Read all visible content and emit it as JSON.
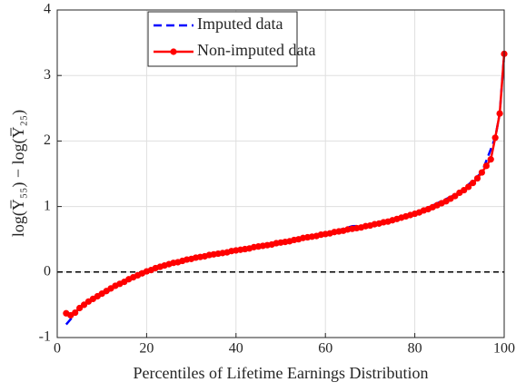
{
  "chart_data": {
    "type": "line",
    "xlabel": "Percentiles of Lifetime Earnings Distribution",
    "ylabel": "log(Y̅₅₅) − log(Y̅₂₅)",
    "x": [
      2,
      3,
      4,
      5,
      6,
      7,
      8,
      9,
      10,
      11,
      12,
      13,
      14,
      15,
      16,
      17,
      18,
      19,
      20,
      21,
      22,
      23,
      24,
      25,
      26,
      27,
      28,
      29,
      30,
      31,
      32,
      33,
      34,
      35,
      36,
      37,
      38,
      39,
      40,
      41,
      42,
      43,
      44,
      45,
      46,
      47,
      48,
      49,
      50,
      51,
      52,
      53,
      54,
      55,
      56,
      57,
      58,
      59,
      60,
      61,
      62,
      63,
      64,
      65,
      66,
      67,
      68,
      69,
      70,
      71,
      72,
      73,
      74,
      75,
      76,
      77,
      78,
      79,
      80,
      81,
      82,
      83,
      84,
      85,
      86,
      87,
      88,
      89,
      90,
      91,
      92,
      93,
      94,
      95,
      96,
      97,
      98,
      99,
      100
    ],
    "series": [
      {
        "name": "Imputed data",
        "color": "#0000ff",
        "dashed": true,
        "x": [
          2,
          3,
          4,
          6,
          8,
          10,
          12,
          15,
          20,
          25,
          30,
          40,
          50,
          56,
          60,
          66,
          70,
          80,
          90,
          95,
          98,
          99,
          100
        ],
        "values": [
          -0.8,
          -0.72,
          -0.62,
          -0.49,
          -0.4,
          -0.35,
          -0.27,
          -0.15,
          0.01,
          0.12,
          0.2,
          0.33,
          0.45,
          0.55,
          0.58,
          0.7,
          0.71,
          0.89,
          1.21,
          1.52,
          2.05,
          2.42,
          3.33
        ]
      },
      {
        "name": "Non-imputed data",
        "color": "#ff0000",
        "markers": true,
        "values": [
          -0.63,
          -0.66,
          -0.62,
          -0.55,
          -0.5,
          -0.45,
          -0.41,
          -0.37,
          -0.33,
          -0.29,
          -0.25,
          -0.21,
          -0.18,
          -0.15,
          -0.11,
          -0.08,
          -0.05,
          -0.02,
          0.01,
          0.03,
          0.06,
          0.08,
          0.1,
          0.12,
          0.14,
          0.15,
          0.17,
          0.19,
          0.2,
          0.22,
          0.23,
          0.24,
          0.26,
          0.27,
          0.28,
          0.29,
          0.3,
          0.32,
          0.33,
          0.34,
          0.35,
          0.36,
          0.38,
          0.39,
          0.4,
          0.41,
          0.42,
          0.44,
          0.45,
          0.46,
          0.47,
          0.49,
          0.5,
          0.52,
          0.53,
          0.54,
          0.55,
          0.57,
          0.58,
          0.59,
          0.61,
          0.62,
          0.63,
          0.65,
          0.66,
          0.67,
          0.68,
          0.7,
          0.71,
          0.73,
          0.74,
          0.76,
          0.77,
          0.79,
          0.81,
          0.83,
          0.85,
          0.87,
          0.89,
          0.91,
          0.94,
          0.96,
          0.99,
          1.02,
          1.05,
          1.08,
          1.12,
          1.16,
          1.21,
          1.25,
          1.3,
          1.36,
          1.43,
          1.52,
          1.62,
          1.72,
          2.05,
          2.42,
          3.33
        ]
      }
    ],
    "hline": 0,
    "xlim": [
      0,
      100
    ],
    "xticks": [
      0,
      20,
      40,
      60,
      80,
      100
    ],
    "ylim": [
      -1,
      4
    ],
    "yticks": [
      -1,
      0,
      1,
      2,
      3,
      4
    ],
    "grid": true,
    "legend": "north"
  }
}
